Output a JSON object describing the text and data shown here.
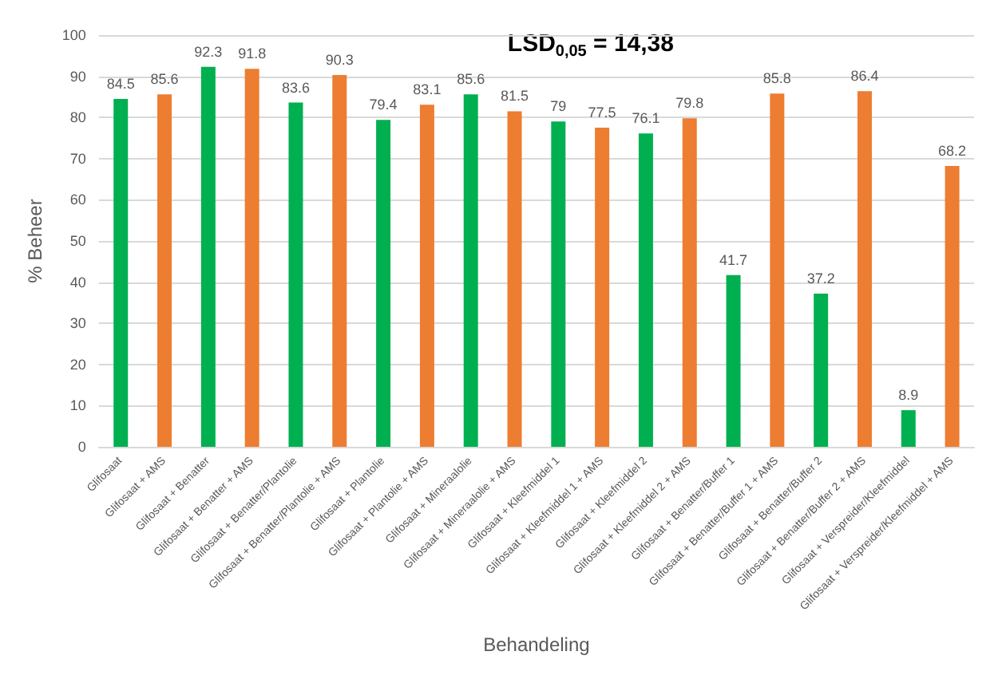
{
  "chart_data": {
    "type": "bar",
    "xlabel": "Behandeling",
    "ylabel": "% Beheer",
    "categories": [
      "Glifosaat",
      "Glifosaat + AMS",
      "Glifosaat + Benatter",
      "Glifosaat + Benatter + AMS",
      "Glifosaat + Benatter/Plantolie",
      "Glifosaat + Benatter/Plantolie + AMS",
      "Glifosaat + Plantolie",
      "Glifosaat + Plantolie + AMS",
      "Glifosaat + Mineraalolie",
      "Glifosaat + Mineraalolie + AMS",
      "Glifosaat + Kleefmiddel 1",
      "Glifosaat + Kleefmiddel 1 + AMS",
      "Glifosaat + Kleefmiddel 2",
      "Glifosaat + Kleefmiddel 2 + AMS",
      "Glifosaat + Benatter/Buffer 1",
      "Glifosaat + Benatter/Buffer 1 + AMS",
      "Glifosaat + Benatter/Buffer 2",
      "Glifosaat + Benatter/Buffer 2 + AMS",
      "Glifosaat + Verspreider/Kleefmiddel",
      "Glifosaat + Verspreider/Kleefmiddel + AMS"
    ],
    "values": [
      84.5,
      85.6,
      92.3,
      91.8,
      83.6,
      90.3,
      79.4,
      83.1,
      85.6,
      81.5,
      79,
      77.5,
      76.1,
      79.8,
      41.7,
      85.8,
      37.2,
      86.4,
      8.9,
      68.2
    ],
    "colors": [
      "#00b050",
      "#ed7d31",
      "#00b050",
      "#ed7d31",
      "#00b050",
      "#ed7d31",
      "#00b050",
      "#ed7d31",
      "#00b050",
      "#ed7d31",
      "#00b050",
      "#ed7d31",
      "#00b050",
      "#ed7d31",
      "#00b050",
      "#ed7d31",
      "#00b050",
      "#ed7d31",
      "#00b050",
      "#ed7d31"
    ],
    "ylim": [
      0,
      100
    ],
    "yticks": [
      0,
      10,
      20,
      30,
      40,
      50,
      60,
      70,
      80,
      90,
      100
    ],
    "grid": "y",
    "data_labels": true,
    "annotations": [
      "LSD$_{0,05}$ = 14,38"
    ]
  }
}
